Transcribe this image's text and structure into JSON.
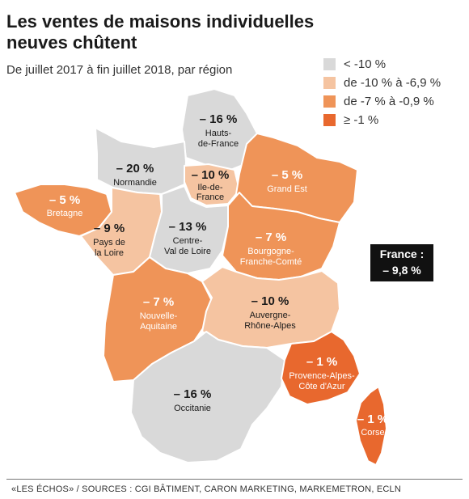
{
  "title": "Les ventes de maisons individuelles neuves chûtent",
  "subtitle": "De juillet 2017 à fin juillet 2018, par région",
  "legend": [
    {
      "label": "< -10 %",
      "color": "#d9d9d9"
    },
    {
      "label": "de -10 % à -6,9 %",
      "color": "#f5c4a1"
    },
    {
      "label": "de -7 % à -0,9 %",
      "color": "#ef9458"
    },
    {
      "label": "≥ -1 %",
      "color": "#e8682e"
    }
  ],
  "regions": {
    "hauts_de_france": {
      "pct": "– 16 %",
      "name": [
        "Hauts-",
        "de-France"
      ]
    },
    "normandie": {
      "pct": "– 20 %",
      "name": [
        "Normandie"
      ]
    },
    "ile_de_france": {
      "pct": "– 10 %",
      "name": [
        "Ile-de-",
        "France"
      ]
    },
    "grand_est": {
      "pct": "– 5 %",
      "name": [
        "Grand Est"
      ]
    },
    "bretagne": {
      "pct": "– 5 %",
      "name": [
        "Bretagne"
      ]
    },
    "pays_de_la_loire": {
      "pct": "– 9 %",
      "name": [
        "Pays de",
        "la Loire"
      ]
    },
    "centre_val_de_loire": {
      "pct": "– 13 %",
      "name": [
        "Centre-",
        "Val de Loire"
      ]
    },
    "bourgogne_franche_comte": {
      "pct": "– 7 %",
      "name": [
        "Bourgogne-",
        "Franche-Comté"
      ]
    },
    "nouvelle_aquitaine": {
      "pct": "– 7 %",
      "name": [
        "Nouvelle-",
        "Aquitaine"
      ]
    },
    "auvergne_rhone_alpes": {
      "pct": "– 10 %",
      "name": [
        "Auvergne-",
        "Rhône-Alpes"
      ]
    },
    "occitanie": {
      "pct": "– 16 %",
      "name": [
        "Occitanie"
      ]
    },
    "provence_alpes_cote_dazur": {
      "pct": "– 1 %",
      "name": [
        "Provence-Alpes-",
        "Côte d'Azur"
      ]
    },
    "corse": {
      "pct": "– 1 %",
      "name": [
        "Corse"
      ]
    }
  },
  "france_total": {
    "line1": "France :",
    "line2": "– 9,8 %"
  },
  "source": "«LES ÉCHOS» / SOURCES : CGI BÂTIMENT, CARON MARKETING, MARKEMETRON, ECLN"
}
